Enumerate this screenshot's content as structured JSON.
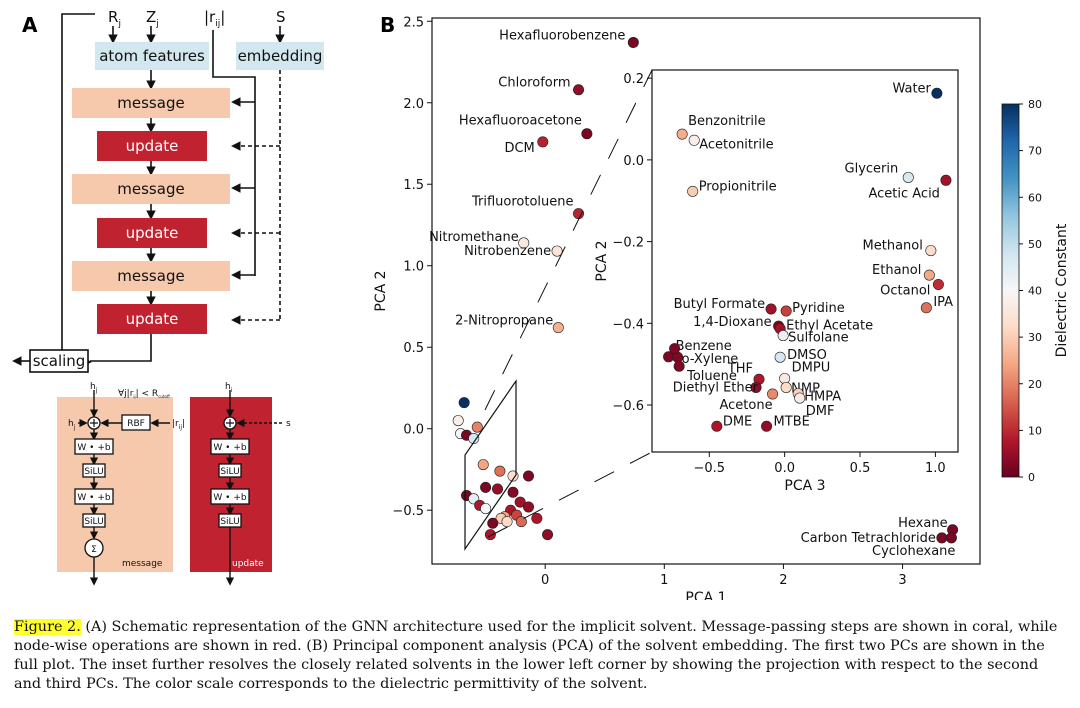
{
  "panel_a": {
    "letter": "A",
    "inputs": [
      "R",
      "Z",
      "|r",
      "S"
    ],
    "input_subscripts": [
      "j",
      "j",
      "ij",
      ""
    ],
    "atom_features": "atom features",
    "embedding": "embedding",
    "blocks": [
      "message",
      "update",
      "message",
      "update",
      "message",
      "update"
    ],
    "scaling": "scaling",
    "message_detail": {
      "top_label": "h",
      "top_sub": "j",
      "cond": "∀j|r",
      "cond_sub": "ij",
      "cond_rest": "| < R",
      "cond_sub2": "cutoff",
      "left_label": "h",
      "left_sub": "j",
      "rbf": "RBF",
      "rij": "|r",
      "rij_sub": "ij",
      "ops": [
        "W • +b",
        "SiLU",
        "W • +b",
        "SiLU"
      ],
      "sum": "Σ",
      "name": "message"
    },
    "update_detail": {
      "top_label": "h",
      "top_sub": "i",
      "s": "s",
      "ops": [
        "W • +b",
        "SiLU",
        "W • +b",
        "SiLU"
      ],
      "name": "update"
    }
  },
  "panel_b": {
    "letter": "B"
  },
  "colorbar": {
    "label": "Dielectric Constant",
    "ticks": [
      0,
      10,
      20,
      30,
      40,
      50,
      60,
      70,
      80
    ],
    "stops": [
      "#67001f",
      "#b2182b",
      "#d6604d",
      "#f4a582",
      "#fddbc7",
      "#f7f7f7",
      "#d1e5f0",
      "#92c5de",
      "#4393c3",
      "#2166ac",
      "#053061"
    ]
  },
  "chart_data": [
    {
      "type": "scatter",
      "xlabel": "PCA 1",
      "ylabel": "PCA 2",
      "xlim": [
        -0.95,
        3.65
      ],
      "ylim": [
        -0.83,
        2.52
      ],
      "xticks": [
        0,
        1,
        2,
        3
      ],
      "yticks": [
        -0.5,
        0.0,
        0.5,
        1.0,
        1.5,
        2.0,
        2.5
      ],
      "ytick_labels": [
        "−0.5",
        "0.0",
        "0.5",
        "1.0",
        "1.5",
        "2.0",
        "2.5"
      ],
      "color_by": "Dielectric Constant",
      "points": [
        {
          "name": "Hexafluorobenzene",
          "x": 0.74,
          "y": 2.37,
          "eps": 2.0
        },
        {
          "name": "Chloroform",
          "x": 0.28,
          "y": 2.08,
          "eps": 4.8
        },
        {
          "name": "Hexafluoroacetone",
          "x": 0.35,
          "y": 1.81,
          "eps": 2.2
        },
        {
          "name": "DCM",
          "x": -0.02,
          "y": 1.76,
          "eps": 8.9
        },
        {
          "name": "Trifluorotoluene",
          "x": 0.28,
          "y": 1.32,
          "eps": 9.2
        },
        {
          "name": "Nitromethane",
          "x": -0.18,
          "y": 1.14,
          "eps": 36.0
        },
        {
          "name": "Nitrobenzene",
          "x": 0.1,
          "y": 1.09,
          "eps": 34.8
        },
        {
          "name": "2-Nitropropane",
          "x": 0.11,
          "y": 0.62,
          "eps": 25.5
        },
        {
          "name": "Hexane",
          "x": 3.42,
          "y": -0.62,
          "eps": 1.9
        },
        {
          "name": "Carbon Tetrachloride",
          "x": 3.33,
          "y": -0.67,
          "eps": 2.2
        },
        {
          "name": "Cyclohexane",
          "x": 3.41,
          "y": -0.67,
          "eps": 2.0
        },
        {
          "name": "",
          "x": -0.68,
          "y": 0.16,
          "eps": 80.0
        },
        {
          "name": "",
          "x": -0.73,
          "y": 0.05,
          "eps": 37.5
        },
        {
          "name": "",
          "x": -0.71,
          "y": -0.03,
          "eps": 41.0
        },
        {
          "name": "",
          "x": -0.66,
          "y": -0.04,
          "eps": 2.0
        },
        {
          "name": "",
          "x": -0.57,
          "y": 0.01,
          "eps": 20.0
        },
        {
          "name": "",
          "x": -0.6,
          "y": -0.06,
          "eps": 47.0
        },
        {
          "name": "",
          "x": -0.52,
          "y": -0.22,
          "eps": 24.0
        },
        {
          "name": "",
          "x": -0.38,
          "y": -0.26,
          "eps": 18.0
        },
        {
          "name": "",
          "x": -0.27,
          "y": -0.29,
          "eps": 33.0
        },
        {
          "name": "",
          "x": -0.14,
          "y": -0.29,
          "eps": 2.5
        },
        {
          "name": "",
          "x": -0.5,
          "y": -0.36,
          "eps": 2.3
        },
        {
          "name": "",
          "x": -0.4,
          "y": -0.37,
          "eps": 5.0
        },
        {
          "name": "",
          "x": -0.27,
          "y": -0.39,
          "eps": 3.0
        },
        {
          "name": "",
          "x": -0.66,
          "y": -0.41,
          "eps": 2.2
        },
        {
          "name": "",
          "x": -0.6,
          "y": -0.43,
          "eps": 44.0
        },
        {
          "name": "",
          "x": -0.55,
          "y": -0.47,
          "eps": 7.5
        },
        {
          "name": "",
          "x": -0.5,
          "y": -0.49,
          "eps": 40.0
        },
        {
          "name": "",
          "x": -0.21,
          "y": -0.45,
          "eps": 6.0
        },
        {
          "name": "",
          "x": -0.14,
          "y": -0.48,
          "eps": 4.3
        },
        {
          "name": "",
          "x": -0.29,
          "y": -0.5,
          "eps": 7.0
        },
        {
          "name": "",
          "x": -0.24,
          "y": -0.53,
          "eps": 13.0
        },
        {
          "name": "",
          "x": -0.34,
          "y": -0.54,
          "eps": 24.0
        },
        {
          "name": "",
          "x": -0.37,
          "y": -0.55,
          "eps": 30.0
        },
        {
          "name": "",
          "x": -0.32,
          "y": -0.57,
          "eps": 32.0
        },
        {
          "name": "",
          "x": -0.44,
          "y": -0.58,
          "eps": 2.0
        },
        {
          "name": "",
          "x": -0.2,
          "y": -0.57,
          "eps": 17.0
        },
        {
          "name": "",
          "x": -0.07,
          "y": -0.55,
          "eps": 7.2
        },
        {
          "name": "",
          "x": 0.02,
          "y": -0.65,
          "eps": 4.3
        },
        {
          "name": "",
          "x": -0.46,
          "y": -0.65,
          "eps": 7.2
        }
      ]
    },
    {
      "type": "scatter",
      "inset": true,
      "xlabel": "PCA 3",
      "ylabel": "PCA 2",
      "xlim": [
        -0.88,
        1.15
      ],
      "ylim": [
        -0.715,
        0.22
      ],
      "xticks": [
        -0.5,
        0.0,
        0.5,
        1.0
      ],
      "xtick_labels": [
        "−0.5",
        "0.0",
        "0.5",
        "1.0"
      ],
      "yticks": [
        -0.6,
        -0.4,
        -0.2,
        0.0,
        0.2
      ],
      "ytick_labels": [
        "−0.6",
        "−0.4",
        "−0.2",
        "0.0",
        "0.2"
      ],
      "points": [
        {
          "name": "Water",
          "x": 1.01,
          "y": 0.163,
          "eps": 80.0
        },
        {
          "name": "Benzonitrile",
          "x": -0.68,
          "y": 0.063,
          "eps": 25.2
        },
        {
          "name": "Acetonitrile",
          "x": -0.6,
          "y": 0.048,
          "eps": 37.5
        },
        {
          "name": "Glycerin",
          "x": 0.82,
          "y": -0.043,
          "eps": 46.5
        },
        {
          "name": "Acetic Acid",
          "x": 1.07,
          "y": -0.05,
          "eps": 6.2
        },
        {
          "name": "Propionitrile",
          "x": -0.61,
          "y": -0.077,
          "eps": 29.7
        },
        {
          "name": "Methanol",
          "x": 0.97,
          "y": -0.222,
          "eps": 32.7
        },
        {
          "name": "Ethanol",
          "x": 0.96,
          "y": -0.282,
          "eps": 24.5
        },
        {
          "name": "Octanol",
          "x": 1.02,
          "y": -0.305,
          "eps": 10.3
        },
        {
          "name": "IPA",
          "x": 0.94,
          "y": -0.362,
          "eps": 18.0
        },
        {
          "name": "Butyl Formate",
          "x": -0.09,
          "y": -0.365,
          "eps": 6.1
        },
        {
          "name": "Pyridine",
          "x": 0.01,
          "y": -0.37,
          "eps": 12.4
        },
        {
          "name": "1,4-Dioxane",
          "x": -0.04,
          "y": -0.407,
          "eps": 2.2
        },
        {
          "name": "Ethyl Acetate",
          "x": -0.03,
          "y": -0.413,
          "eps": 6.0
        },
        {
          "name": "Sulfolane",
          "x": -0.01,
          "y": -0.43,
          "eps": 43.3
        },
        {
          "name": "Benzene",
          "x": -0.77,
          "y": -0.482,
          "eps": 2.3
        },
        {
          "name": "o-Xylene",
          "x": -0.71,
          "y": -0.483,
          "eps": 2.6
        },
        {
          "name": "",
          "x": -0.73,
          "y": -0.462,
          "eps": 2.4
        },
        {
          "name": "DMSO",
          "x": -0.03,
          "y": -0.483,
          "eps": 46.7
        },
        {
          "name": "THF",
          "x": -0.17,
          "y": -0.537,
          "eps": 7.5
        },
        {
          "name": "Toluene",
          "x": -0.7,
          "y": -0.505,
          "eps": 2.4
        },
        {
          "name": "DMPU",
          "x": 0.0,
          "y": -0.535,
          "eps": 36.1
        },
        {
          "name": "NMP",
          "x": 0.01,
          "y": -0.557,
          "eps": 32.2
        },
        {
          "name": "Diethyl Ether",
          "x": -0.19,
          "y": -0.557,
          "eps": 4.3
        },
        {
          "name": "HMPA",
          "x": 0.09,
          "y": -0.572,
          "eps": 30.0
        },
        {
          "name": "Acetone",
          "x": -0.08,
          "y": -0.573,
          "eps": 20.7
        },
        {
          "name": "DMF",
          "x": 0.1,
          "y": -0.583,
          "eps": 36.7
        },
        {
          "name": "DME",
          "x": -0.45,
          "y": -0.652,
          "eps": 7.2
        },
        {
          "name": "MTBE",
          "x": -0.12,
          "y": -0.652,
          "eps": 4.5
        }
      ]
    }
  ],
  "caption": {
    "label": "Figure 2.",
    "text": " (A) Schematic representation of the GNN architecture used for the implicit solvent. Message-passing steps are shown in coral, while node-wise operations are shown in red. (B) Principal component analysis (PCA) of the solvent embedding. The first two PCs are shown in the full plot. The inset further resolves the closely related solvents in the lower left corner by showing the projection with respect to the second and third PCs. The color scale corresponds to the dielectric permittivity of the solvent."
  }
}
